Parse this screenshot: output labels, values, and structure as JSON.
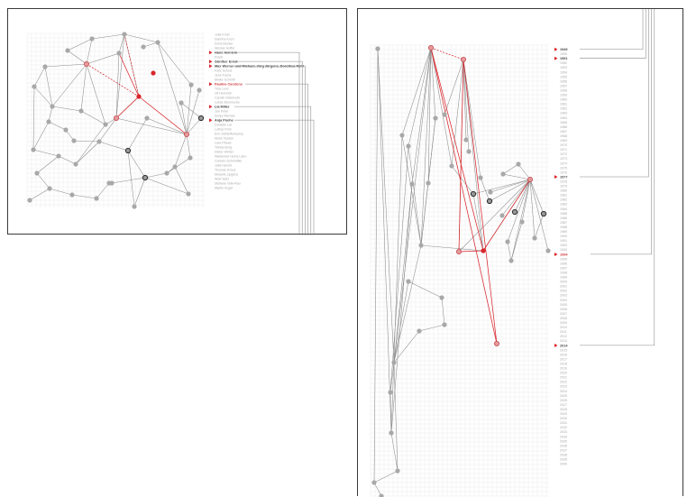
{
  "colors": {
    "accent": "#d9262c",
    "node": "#a8a8a8",
    "edge": "#8c8c8c",
    "grid": "#ececec"
  },
  "left": {
    "labels": [
      "Julia Frost",
      "Sabrina Koch",
      "Doris Becker",
      "Nicolas Hoffer",
      "Hans Heinlein",
      "Frank",
      "Günther Ernst",
      "Max Werner und Michael, Jörg Jürgens, Dorothea Ruhl",
      "Felix Scholz",
      "Jens Fuchs",
      "Meike Schmitt",
      "Pauline Carstens",
      "Tina Lenz",
      "Uli Helmrich",
      "Carolin Waßmuth",
      "Lukas Brennecke",
      "Lia Miller",
      "Jan Peter",
      "Sonja Nieman",
      "Anja Poehe",
      "Danielle Lai",
      "Lothar Pohl",
      "Eric Schlieffenkamp",
      "Aleks Tessen",
      "Lara Pfauel",
      "Tobias Borg",
      "Dieter Winter",
      "Waldemar Heinz Lahn",
      "Carsten Schmidtke",
      "Julia Herold",
      "Thomas Kraus",
      "Melanie Lipgens",
      "Wolf Seitz",
      "Stefanie Volk-Rau",
      "Martin Kugel"
    ],
    "highlight": [
      {
        "index": 4,
        "style": "dark"
      },
      {
        "index": 6,
        "style": "dark"
      },
      {
        "index": 7,
        "style": "dark"
      },
      {
        "index": 11,
        "style": "red"
      },
      {
        "index": 16,
        "style": "dark"
      },
      {
        "index": 19,
        "style": "dark"
      }
    ]
  },
  "right": {
    "labels": [
      "1949",
      "1950",
      "1951",
      "1952",
      "1953",
      "1954",
      "1955",
      "1956",
      "1957",
      "1958",
      "1959",
      "1960",
      "1961",
      "1962",
      "1963",
      "1964",
      "1965",
      "1966",
      "1967",
      "1968",
      "1969",
      "1970",
      "1971",
      "1972",
      "1973",
      "1974",
      "1975",
      "1976",
      "1977",
      "1978",
      "1979",
      "1980",
      "1981",
      "1982",
      "1983",
      "1984",
      "1985",
      "1986",
      "1987",
      "1988",
      "1989",
      "1990",
      "1991",
      "1992",
      "1993",
      "1994",
      "1995",
      "1996",
      "1997",
      "1998",
      "1999",
      "2000",
      "2001",
      "2002",
      "2003",
      "2004",
      "2005",
      "2006",
      "2007",
      "2008",
      "2009",
      "2010",
      "2011",
      "2012",
      "2013",
      "2014",
      "2015",
      "2016",
      "2017",
      "2018",
      "2019",
      "2020",
      "2021",
      "2022",
      "2023",
      "2024",
      "2025",
      "2026",
      "2027",
      "2028",
      "2029",
      "2030",
      "2031",
      "2032",
      "2033",
      "2034",
      "2035",
      "2036",
      "2037",
      "2038",
      "2039",
      "2040"
    ],
    "highlight": [
      {
        "index": 0,
        "style": "dark"
      },
      {
        "index": 2,
        "style": "dark"
      },
      {
        "index": 28,
        "style": "dark"
      },
      {
        "index": 45,
        "style": "red"
      },
      {
        "index": 65,
        "style": "dark"
      }
    ]
  }
}
